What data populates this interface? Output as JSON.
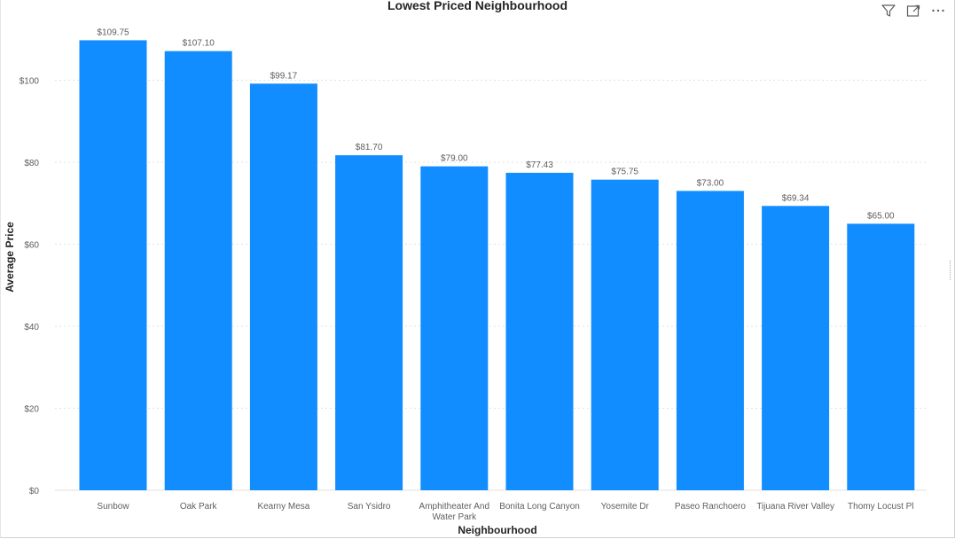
{
  "toolbar": {
    "icons": [
      "filter-icon",
      "focus-mode-icon",
      "more-options-icon"
    ]
  },
  "chart_data": {
    "type": "bar",
    "title": "Lowest Priced Neighbourhood",
    "xlabel": "Neighbourhood",
    "ylabel": "Average Price",
    "categories": [
      "Sunbow",
      "Oak Park",
      "Kearny Mesa",
      "San Ysidro",
      "Amphitheater And Water Park",
      "Bonita Long Canyon",
      "Yosemite Dr",
      "Paseo Ranchoero",
      "Tijuana River Valley",
      "Thomy Locust Pl"
    ],
    "category_lines": [
      [
        "Sunbow"
      ],
      [
        "Oak Park"
      ],
      [
        "Kearny Mesa"
      ],
      [
        "San Ysidro"
      ],
      [
        "Amphitheater And",
        "Water Park"
      ],
      [
        "Bonita Long Canyon"
      ],
      [
        "Yosemite Dr"
      ],
      [
        "Paseo Ranchoero"
      ],
      [
        "Tijuana River Valley"
      ],
      [
        "Thomy Locust Pl"
      ]
    ],
    "values": [
      109.75,
      107.1,
      99.17,
      81.7,
      79.0,
      77.43,
      75.75,
      73.0,
      69.34,
      65.0
    ],
    "data_labels": [
      "$109.75",
      "$107.10",
      "$99.17",
      "$81.70",
      "$79.00",
      "$77.43",
      "$75.75",
      "$73.00",
      "$69.34",
      "$65.00"
    ],
    "yticks": [
      0,
      20,
      40,
      60,
      80,
      100
    ],
    "ytick_labels": [
      "$0",
      "$20",
      "$40",
      "$60",
      "$80",
      "$100"
    ],
    "ylim": [
      0,
      118
    ],
    "grid": true,
    "legend": "none",
    "bar_color": "#118DFF",
    "grid_color": "#e1e1e1"
  }
}
